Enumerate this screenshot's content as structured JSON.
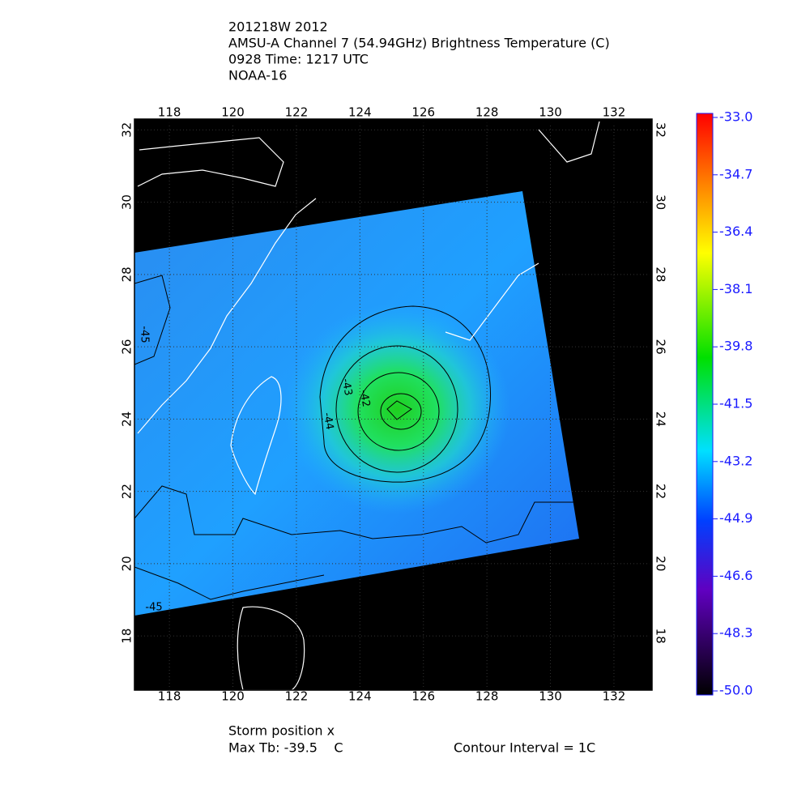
{
  "header": {
    "lines": [
      "201218W 2012",
      "AMSU-A Channel 7 (54.94GHz) Brightness Temperature (C)",
      "0928 Time: 1217 UTC",
      "NOAA-16"
    ]
  },
  "map": {
    "xlim": [
      116.9,
      133.2
    ],
    "ylim": [
      16.5,
      32.3
    ],
    "xticks": [
      118,
      120,
      122,
      124,
      126,
      128,
      130,
      132
    ],
    "yticks": [
      18,
      20,
      22,
      24,
      26,
      28,
      30,
      32
    ],
    "contour_labels": [
      "-45",
      "-43",
      "-42",
      "-44",
      "-45"
    ]
  },
  "colorbar": {
    "lim": [
      -50,
      -33
    ],
    "ticks": [
      {
        "value": -33,
        "label": "-33.0"
      },
      -34.7,
      -36.4,
      -38.1,
      -39.8,
      -41.5,
      -43.2,
      -44.9,
      -46.6,
      -48.3,
      {
        "value": -50,
        "label": "-50.0"
      }
    ]
  },
  "footer": {
    "storm": "Storm position x",
    "max_tb": "Max Tb: -39.5    C",
    "interval": "Contour Interval = 1C"
  }
}
